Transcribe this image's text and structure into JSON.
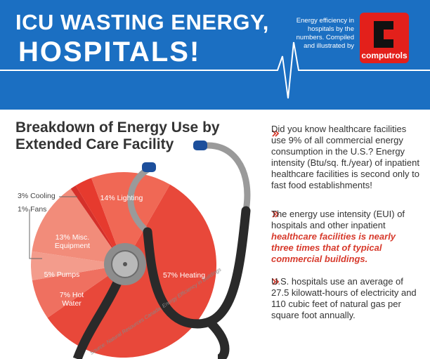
{
  "header": {
    "title_line1": "ICU WASTING ENERGY,",
    "title_line2": "HOSPITALS!",
    "tagline": "Energy efficiency in hospitals by the numbers. Compiled and illustrated by",
    "logo": "computrols"
  },
  "chart_data": {
    "type": "pie",
    "title": "Breakdown of Energy Use by Extended Care Facility",
    "values": [
      57,
      7,
      5,
      13,
      1,
      3,
      14
    ],
    "value_labels": [
      "57% Heating",
      "7% Hot Water",
      "5% Pumps",
      "13% Misc. Equipment",
      "1% Fans",
      "3% Cooling",
      "14% Lighting"
    ],
    "colors": [
      "#e8483a",
      "#ef7060",
      "#f39c8c",
      "#f28c7a",
      "#d5302a",
      "#e63a2e",
      "#f06855"
    ],
    "source": "Source: Natural Resources Canada, Energy Efficiency in Buildings"
  },
  "bullets": [
    {
      "text": "Did you know healthcare facilities use 9% of all commercial energy consumption in the U.S.? Energy intensity (Btu/sq. ft./year) of inpatient healthcare facilities is second only to fast food establishments!"
    },
    {
      "text": "The energy use intensity (EUI) of hospitals and other inpatient",
      "emphasis": "healthcare facilities is nearly three times that of typical commercial buildings."
    },
    {
      "text": "U.S. hospitals use an average of 27.5 kilowatt-hours of electricity and 110 cubic feet of natural gas per square foot annually."
    }
  ]
}
